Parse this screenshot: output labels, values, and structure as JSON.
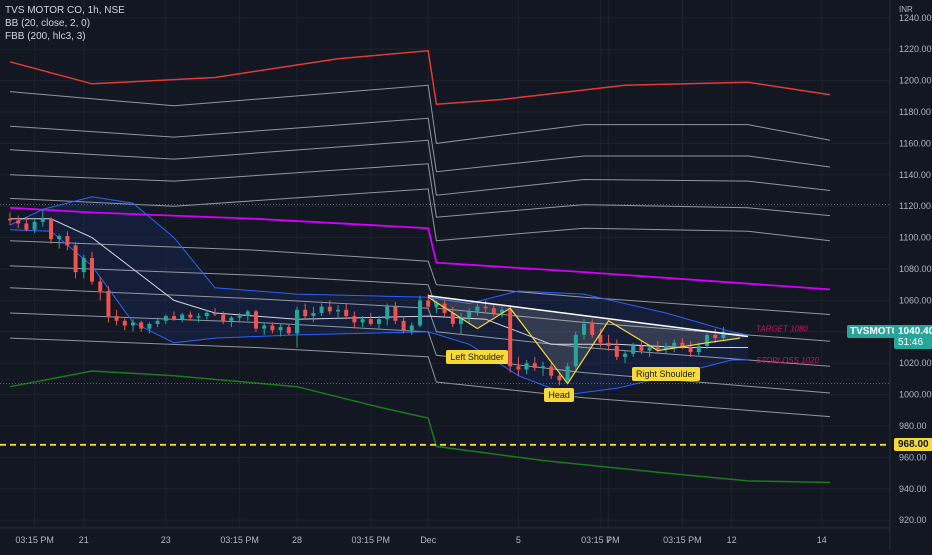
{
  "header": {
    "title": "TVS MOTOR CO, 1h, NSE",
    "indicators": [
      "BB (20, close, 2, 0)",
      "FBB (200, hlc3, 3)"
    ]
  },
  "currency": "INR",
  "colors": {
    "background": "#131722",
    "grid": "#1e222d",
    "up": "#26a69a",
    "down": "#ef5350",
    "bb": "#2962ff",
    "fbb_upper": "#e53935",
    "fbb_mid": "#d500f9",
    "fbb_lower": "#1b7a1b",
    "fbb_inner": "#b2b5be",
    "pattern": "#f6d93b",
    "neckline": "#ffffff",
    "support": "#f6d93b",
    "target_text": "#c2185b"
  },
  "chart_data": {
    "type": "candlestick",
    "ylim": [
      915,
      1245
    ],
    "y_ticks": [
      920,
      940,
      960,
      980,
      1000,
      1020,
      1040,
      1060,
      1080,
      1100,
      1120,
      1140,
      1160,
      1180,
      1200,
      1220,
      1240
    ],
    "y_tick_labels": [
      "920.00",
      "940.00",
      "960.00",
      "980.00",
      "1000.00",
      "1020.00",
      "1040.00",
      "1060.00",
      "1080.00",
      "1100.00",
      "1120.00",
      "1140.00",
      "1160.00",
      "1180.00",
      "1200.00",
      "1220.00",
      "1240.00"
    ],
    "x_ticks": [
      {
        "i": 3,
        "label": "03:15 PM"
      },
      {
        "i": 9,
        "label": "21"
      },
      {
        "i": 19,
        "label": "23"
      },
      {
        "i": 28,
        "label": "03:15 PM"
      },
      {
        "i": 35,
        "label": "28"
      },
      {
        "i": 44,
        "label": "03:15 PM"
      },
      {
        "i": 51,
        "label": "Dec"
      },
      {
        "i": 62,
        "label": "5"
      },
      {
        "i": 72,
        "label": "03:15 PM"
      },
      {
        "i": 73,
        "label": "7"
      },
      {
        "i": 82,
        "label": "03:15 PM"
      },
      {
        "i": 88,
        "label": "12"
      },
      {
        "i": 99,
        "label": "14"
      }
    ],
    "candles": [
      [
        1112,
        1116,
        1108,
        1111
      ],
      [
        1111,
        1114,
        1106,
        1109
      ],
      [
        1109,
        1113,
        1104,
        1105
      ],
      [
        1105,
        1112,
        1103,
        1110
      ],
      [
        1110,
        1118,
        1107,
        1112
      ],
      [
        1112,
        1113,
        1096,
        1099
      ],
      [
        1099,
        1102,
        1093,
        1101
      ],
      [
        1101,
        1104,
        1092,
        1095
      ],
      [
        1095,
        1097,
        1074,
        1078
      ],
      [
        1078,
        1089,
        1074,
        1087
      ],
      [
        1087,
        1091,
        1070,
        1072
      ],
      [
        1072,
        1075,
        1060,
        1066
      ],
      [
        1066,
        1069,
        1046,
        1050
      ],
      [
        1050,
        1054,
        1044,
        1047
      ],
      [
        1047,
        1049,
        1041,
        1044
      ],
      [
        1044,
        1048,
        1040,
        1046
      ],
      [
        1046,
        1047,
        1040,
        1042
      ],
      [
        1042,
        1046,
        1039,
        1045
      ],
      [
        1045,
        1049,
        1043,
        1047
      ],
      [
        1047,
        1051,
        1045,
        1050
      ],
      [
        1050,
        1053,
        1047,
        1048
      ],
      [
        1048,
        1052,
        1046,
        1051
      ],
      [
        1051,
        1053,
        1047,
        1049
      ],
      [
        1049,
        1052,
        1046,
        1050
      ],
      [
        1050,
        1054,
        1048,
        1052
      ],
      [
        1052,
        1055,
        1050,
        1051
      ],
      [
        1051,
        1053,
        1045,
        1047
      ],
      [
        1047,
        1050,
        1043,
        1049
      ],
      [
        1049,
        1052,
        1046,
        1050
      ],
      [
        1050,
        1054,
        1047,
        1053
      ],
      [
        1053,
        1054,
        1040,
        1042
      ],
      [
        1042,
        1046,
        1038,
        1044
      ],
      [
        1044,
        1046,
        1039,
        1041
      ],
      [
        1041,
        1045,
        1037,
        1043
      ],
      [
        1043,
        1045,
        1038,
        1039
      ],
      [
        1039,
        1056,
        1030,
        1054
      ],
      [
        1054,
        1058,
        1048,
        1050
      ],
      [
        1050,
        1056,
        1046,
        1052
      ],
      [
        1052,
        1058,
        1050,
        1056
      ],
      [
        1056,
        1060,
        1051,
        1053
      ],
      [
        1053,
        1057,
        1048,
        1054
      ],
      [
        1054,
        1058,
        1048,
        1050
      ],
      [
        1050,
        1053,
        1042,
        1046
      ],
      [
        1046,
        1050,
        1043,
        1048
      ],
      [
        1048,
        1052,
        1044,
        1045
      ],
      [
        1045,
        1050,
        1042,
        1048
      ],
      [
        1048,
        1058,
        1044,
        1056
      ],
      [
        1056,
        1059,
        1045,
        1047
      ],
      [
        1047,
        1050,
        1039,
        1041
      ],
      [
        1041,
        1046,
        1038,
        1044
      ],
      [
        1044,
        1063,
        1043,
        1060
      ],
      [
        1060,
        1064,
        1054,
        1056
      ],
      [
        1056,
        1060,
        1052,
        1058
      ],
      [
        1058,
        1060,
        1050,
        1052
      ],
      [
        1052,
        1056,
        1043,
        1045
      ],
      [
        1045,
        1052,
        1038,
        1049
      ],
      [
        1049,
        1055,
        1046,
        1053
      ],
      [
        1053,
        1058,
        1050,
        1056
      ],
      [
        1056,
        1060,
        1052,
        1055
      ],
      [
        1055,
        1058,
        1050,
        1052
      ],
      [
        1052,
        1056,
        1049,
        1054
      ],
      [
        1054,
        1057,
        1014,
        1018
      ],
      [
        1018,
        1024,
        1012,
        1016
      ],
      [
        1016,
        1022,
        1013,
        1020
      ],
      [
        1020,
        1024,
        1015,
        1017
      ],
      [
        1017,
        1021,
        1012,
        1018
      ],
      [
        1018,
        1020,
        1010,
        1012
      ],
      [
        1012,
        1014,
        1006,
        1009
      ],
      [
        1009,
        1020,
        1008,
        1018
      ],
      [
        1018,
        1040,
        1016,
        1038
      ],
      [
        1038,
        1048,
        1035,
        1045
      ],
      [
        1045,
        1048,
        1036,
        1038
      ],
      [
        1038,
        1042,
        1030,
        1033
      ],
      [
        1033,
        1038,
        1028,
        1031
      ],
      [
        1031,
        1035,
        1022,
        1024
      ],
      [
        1024,
        1028,
        1020,
        1026
      ],
      [
        1026,
        1033,
        1024,
        1031
      ],
      [
        1031,
        1034,
        1026,
        1028
      ],
      [
        1028,
        1032,
        1024,
        1030
      ],
      [
        1030,
        1034,
        1027,
        1029
      ],
      [
        1029,
        1033,
        1026,
        1031
      ],
      [
        1031,
        1035,
        1027,
        1033
      ],
      [
        1033,
        1036,
        1029,
        1030
      ],
      [
        1030,
        1034,
        1024,
        1027
      ],
      [
        1027,
        1033,
        1025,
        1031
      ],
      [
        1031,
        1039,
        1029,
        1038
      ],
      [
        1038,
        1042,
        1033,
        1036
      ],
      [
        1036,
        1043,
        1034,
        1040
      ]
    ],
    "overlays": [
      {
        "name": "fbb_upper",
        "color": "#e53935",
        "width": 1.5,
        "points": [
          [
            0,
            1212
          ],
          [
            10,
            1198
          ],
          [
            25,
            1202
          ],
          [
            40,
            1214
          ],
          [
            51,
            1219
          ],
          [
            52,
            1185
          ],
          [
            60,
            1188
          ],
          [
            75,
            1197
          ],
          [
            90,
            1199
          ],
          [
            100,
            1191
          ]
        ]
      },
      {
        "name": "fbb_u2",
        "color": "#b2b5be",
        "width": 1,
        "points": [
          [
            0,
            1193
          ],
          [
            20,
            1184
          ],
          [
            51,
            1197
          ],
          [
            52,
            1160
          ],
          [
            70,
            1172
          ],
          [
            90,
            1172
          ],
          [
            100,
            1162
          ]
        ]
      },
      {
        "name": "fbb_u3",
        "color": "#b2b5be",
        "width": 1,
        "points": [
          [
            0,
            1171
          ],
          [
            20,
            1164
          ],
          [
            51,
            1176
          ],
          [
            52,
            1142
          ],
          [
            70,
            1152
          ],
          [
            90,
            1152
          ],
          [
            100,
            1145
          ]
        ]
      },
      {
        "name": "fbb_u4",
        "color": "#b2b5be",
        "width": 1,
        "points": [
          [
            0,
            1156
          ],
          [
            20,
            1150
          ],
          [
            51,
            1162
          ],
          [
            52,
            1127
          ],
          [
            70,
            1137
          ],
          [
            90,
            1136
          ],
          [
            100,
            1130
          ]
        ]
      },
      {
        "name": "fbb_u5",
        "color": "#b2b5be",
        "width": 1,
        "points": [
          [
            0,
            1140
          ],
          [
            20,
            1136
          ],
          [
            51,
            1147
          ],
          [
            52,
            1113
          ],
          [
            70,
            1121
          ],
          [
            90,
            1119
          ],
          [
            100,
            1114
          ]
        ]
      },
      {
        "name": "fbb_u6",
        "color": "#b2b5be",
        "width": 1,
        "points": [
          [
            0,
            1125
          ],
          [
            20,
            1120
          ],
          [
            51,
            1131
          ],
          [
            52,
            1098
          ],
          [
            70,
            1106
          ],
          [
            90,
            1104
          ],
          [
            100,
            1098
          ]
        ]
      },
      {
        "name": "fbb_basis",
        "color": "#d500f9",
        "width": 1.8,
        "points": [
          [
            0,
            1119
          ],
          [
            10,
            1116
          ],
          [
            30,
            1112
          ],
          [
            51,
            1106
          ],
          [
            52,
            1084
          ],
          [
            70,
            1078
          ],
          [
            100,
            1067
          ]
        ]
      },
      {
        "name": "fbb_l1",
        "color": "#b2b5be",
        "width": 1,
        "points": [
          [
            0,
            1098
          ],
          [
            30,
            1092
          ],
          [
            51,
            1085
          ],
          [
            52,
            1070
          ],
          [
            70,
            1062
          ],
          [
            100,
            1051
          ]
        ]
      },
      {
        "name": "fbb_l2",
        "color": "#b2b5be",
        "width": 1,
        "points": [
          [
            0,
            1082
          ],
          [
            30,
            1076
          ],
          [
            51,
            1070
          ],
          [
            52,
            1055
          ],
          [
            70,
            1046
          ],
          [
            100,
            1034
          ]
        ]
      },
      {
        "name": "fbb_l3",
        "color": "#b2b5be",
        "width": 1,
        "points": [
          [
            0,
            1068
          ],
          [
            30,
            1061
          ],
          [
            51,
            1055
          ],
          [
            52,
            1040
          ],
          [
            70,
            1030
          ],
          [
            100,
            1018
          ]
        ]
      },
      {
        "name": "fbb_l4",
        "color": "#b2b5be",
        "width": 1,
        "points": [
          [
            0,
            1052
          ],
          [
            30,
            1046
          ],
          [
            51,
            1040
          ],
          [
            52,
            1025
          ],
          [
            70,
            1014
          ],
          [
            100,
            1001
          ]
        ]
      },
      {
        "name": "fbb_l5",
        "color": "#b2b5be",
        "width": 1,
        "points": [
          [
            0,
            1036
          ],
          [
            30,
            1030
          ],
          [
            51,
            1024
          ],
          [
            52,
            1008
          ],
          [
            70,
            998
          ],
          [
            100,
            986
          ]
        ]
      },
      {
        "name": "fbb_lower",
        "color": "#1b7a1b",
        "width": 1.5,
        "points": [
          [
            0,
            1005
          ],
          [
            10,
            1015
          ],
          [
            20,
            1012
          ],
          [
            35,
            1005
          ],
          [
            45,
            992
          ],
          [
            51,
            985
          ],
          [
            52,
            967
          ],
          [
            65,
            958
          ],
          [
            80,
            950
          ],
          [
            90,
            945
          ],
          [
            100,
            944
          ]
        ]
      },
      {
        "name": "bb_upper",
        "color": "#2962ff",
        "width": 1,
        "points": [
          [
            0,
            1108
          ],
          [
            4,
            1118
          ],
          [
            10,
            1126
          ],
          [
            15,
            1122
          ],
          [
            20,
            1100
          ],
          [
            25,
            1068
          ],
          [
            35,
            1064
          ],
          [
            51,
            1062
          ],
          [
            56,
            1058
          ],
          [
            62,
            1066
          ],
          [
            70,
            1064
          ],
          [
            80,
            1052
          ],
          [
            88,
            1040
          ],
          [
            90,
            1038
          ]
        ]
      },
      {
        "name": "bb_basis",
        "color": "#d1d4dc",
        "width": 1,
        "points": [
          [
            0,
            1112
          ],
          [
            5,
            1112
          ],
          [
            10,
            1100
          ],
          [
            15,
            1080
          ],
          [
            20,
            1060
          ],
          [
            25,
            1052
          ],
          [
            35,
            1048
          ],
          [
            51,
            1050
          ],
          [
            58,
            1048
          ],
          [
            66,
            1032
          ],
          [
            74,
            1032
          ],
          [
            82,
            1030
          ],
          [
            90,
            1030
          ]
        ]
      },
      {
        "name": "bb_lower",
        "color": "#2962ff",
        "width": 1,
        "points": [
          [
            0,
            1105
          ],
          [
            5,
            1104
          ],
          [
            10,
            1082
          ],
          [
            15,
            1046
          ],
          [
            20,
            1033
          ],
          [
            25,
            1036
          ],
          [
            35,
            1038
          ],
          [
            51,
            1040
          ],
          [
            56,
            1032
          ],
          [
            62,
            1012
          ],
          [
            68,
            1000
          ],
          [
            74,
            1004
          ],
          [
            82,
            1014
          ],
          [
            88,
            1022
          ],
          [
            90,
            1022
          ]
        ]
      }
    ],
    "bb_fill_color": "rgba(41,98,255,0.10)",
    "pattern": {
      "zigzag": [
        [
          51,
          1062
        ],
        [
          57,
          1042
        ],
        [
          61,
          1055
        ],
        [
          68,
          1007
        ],
        [
          73,
          1047
        ],
        [
          79,
          1028
        ],
        [
          85,
          1033
        ],
        [
          89,
          1036
        ]
      ],
      "neckline": [
        [
          51,
          1063
        ],
        [
          90,
          1037
        ]
      ],
      "labels": [
        {
          "text": "Left Shoulder",
          "i": 57,
          "y": 1024
        },
        {
          "text": "Head",
          "i": 67,
          "y": 1000
        },
        {
          "text": "Right Shoulder",
          "i": 80,
          "y": 1013
        }
      ],
      "target_text": "TARGET 1080",
      "target_y": 1042,
      "stoploss_text": "STOPLOSS 1020",
      "stoploss_y": 1022
    },
    "support_line": {
      "y": 968,
      "label": "968.00"
    },
    "h_lines": [
      1121,
      1007
    ],
    "current_price": {
      "value": "1040.40",
      "symbol": "TVSMOTOR",
      "countdown": "51:46",
      "y": 1039
    }
  }
}
